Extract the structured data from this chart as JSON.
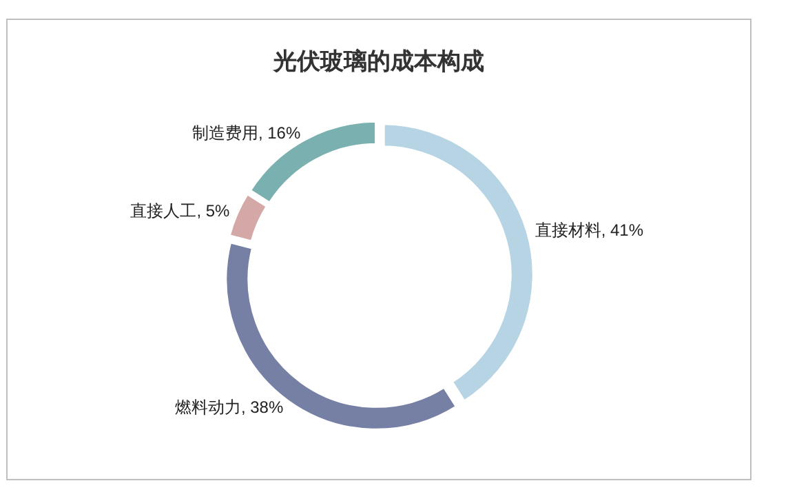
{
  "chart_data": {
    "type": "donut",
    "title": "光伏玻璃的成本构成",
    "categories": [
      "直接材料",
      "燃料动力",
      "直接人工",
      "制造费用"
    ],
    "values": [
      41,
      38,
      5,
      16
    ],
    "value_labels": [
      ", 41%",
      ", 38%",
      ", 5%",
      ", 16%"
    ],
    "colors": [
      "#b7d4e4",
      "#7580a4",
      "#d4a8a6",
      "#7ab0b0"
    ]
  }
}
